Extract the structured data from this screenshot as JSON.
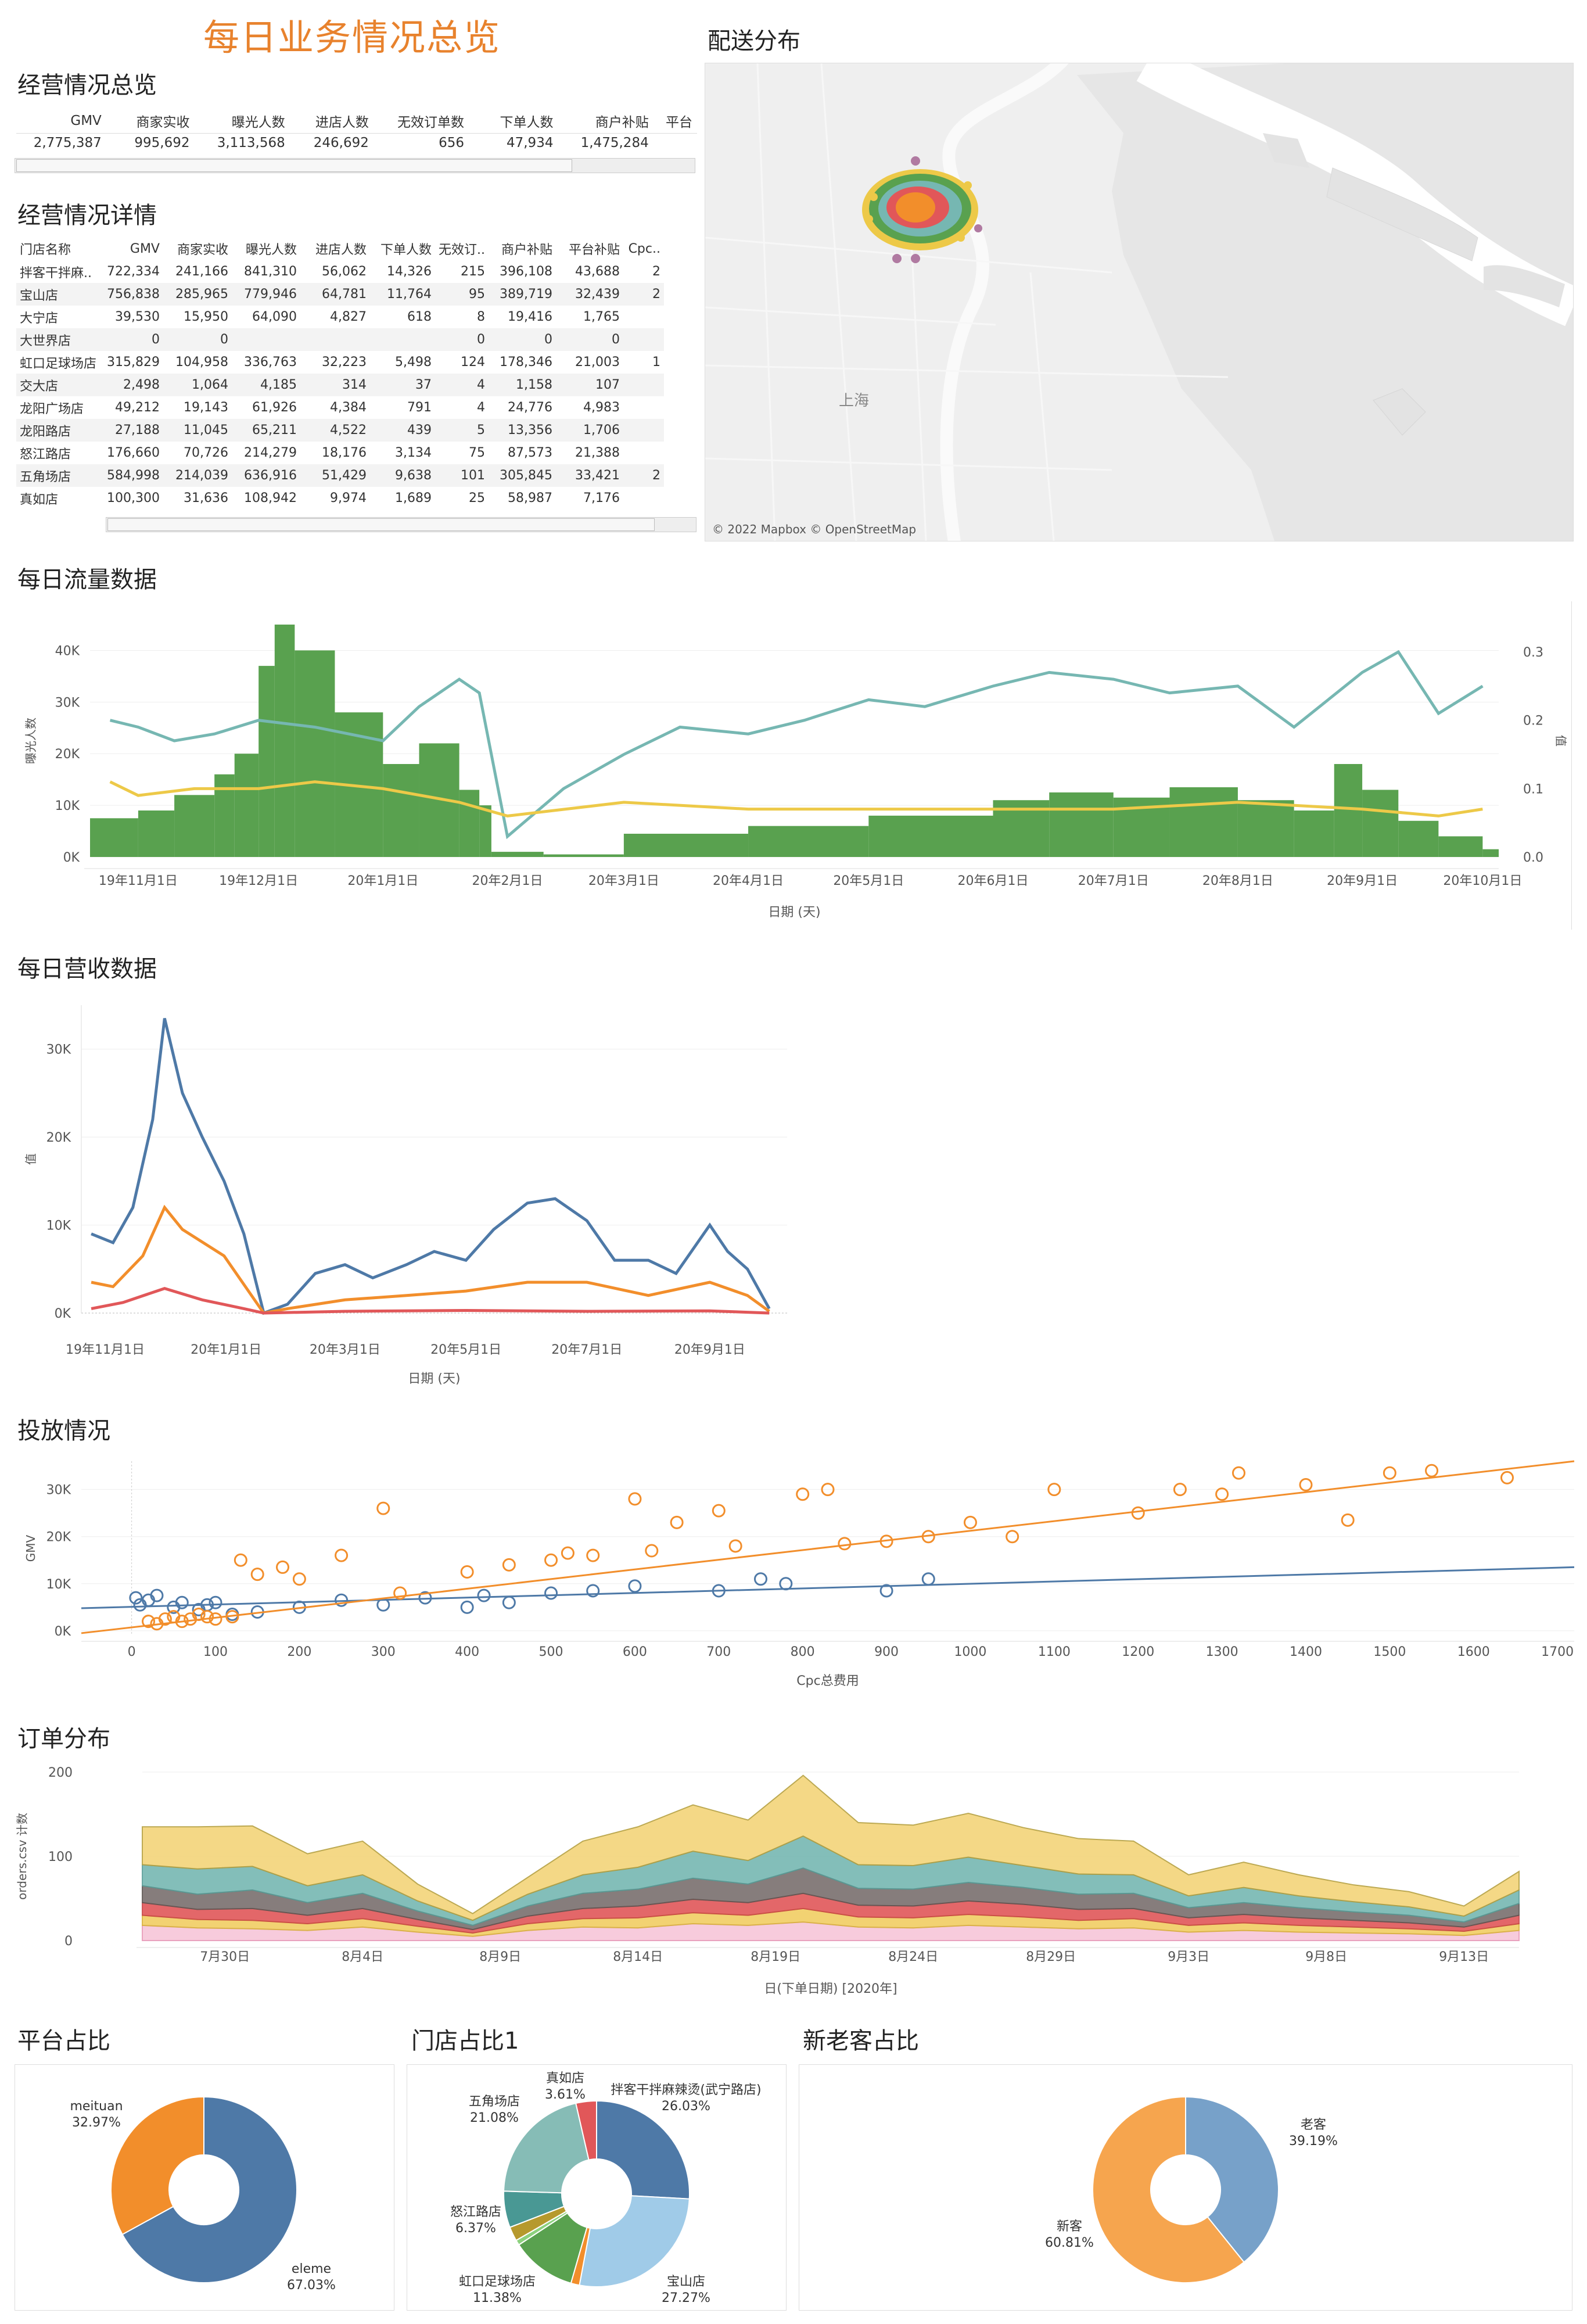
{
  "main_title": "每日业务情况总览",
  "overview": {
    "title": "经营情况总览",
    "headers": [
      "GMV",
      "商家实收",
      "曝光人数",
      "进店人数",
      "无效订单数",
      "下单人数",
      "商户补贴",
      "平台"
    ],
    "values": [
      "2,775,387",
      "995,692",
      "3,113,568",
      "246,692",
      "656",
      "47,934",
      "1,475,284",
      ""
    ]
  },
  "detail": {
    "title": "经营情况详情",
    "headers": [
      "门店名称",
      "GMV",
      "商家实收",
      "曝光人数",
      "进店人数",
      "下单人数",
      "无效订..",
      "商户补贴",
      "平台补贴",
      "Cpc.."
    ],
    "rows": [
      [
        "拌客干拌麻..",
        "722,334",
        "241,166",
        "841,310",
        "56,062",
        "14,326",
        "215",
        "396,108",
        "43,688",
        "2"
      ],
      [
        "宝山店",
        "756,838",
        "285,965",
        "779,946",
        "64,781",
        "11,764",
        "95",
        "389,719",
        "32,439",
        "2"
      ],
      [
        "大宁店",
        "39,530",
        "15,950",
        "64,090",
        "4,827",
        "618",
        "8",
        "19,416",
        "1,765",
        ""
      ],
      [
        "大世界店",
        "0",
        "0",
        "",
        "",
        "",
        "0",
        "0",
        "0",
        ""
      ],
      [
        "虹口足球场店",
        "315,829",
        "104,958",
        "336,763",
        "32,223",
        "5,498",
        "124",
        "178,346",
        "21,003",
        "1"
      ],
      [
        "交大店",
        "2,498",
        "1,064",
        "4,185",
        "314",
        "37",
        "4",
        "1,158",
        "107",
        ""
      ],
      [
        "龙阳广场店",
        "49,212",
        "19,143",
        "61,926",
        "4,384",
        "791",
        "4",
        "24,776",
        "4,983",
        ""
      ],
      [
        "龙阳路店",
        "27,188",
        "11,045",
        "65,211",
        "4,522",
        "439",
        "5",
        "13,356",
        "1,706",
        ""
      ],
      [
        "怒江路店",
        "176,660",
        "70,726",
        "214,279",
        "18,176",
        "3,134",
        "75",
        "87,573",
        "21,388",
        ""
      ],
      [
        "五角场店",
        "584,998",
        "214,039",
        "636,916",
        "51,429",
        "9,638",
        "101",
        "305,845",
        "33,421",
        "2"
      ],
      [
        "真如店",
        "100,300",
        "31,636",
        "108,942",
        "9,974",
        "1,689",
        "25",
        "58,987",
        "7,176",
        ""
      ]
    ]
  },
  "map": {
    "title": "配送分布",
    "city_label": "上海",
    "attribution": "© 2022 Mapbox © OpenStreetMap"
  },
  "traffic": {
    "title": "每日流量数据",
    "ylabel_left": "曝光人数",
    "ylabel_right": "值",
    "xlabel": "日期 (天)",
    "left_ticks": [
      "0K",
      "10K",
      "20K",
      "30K",
      "40K"
    ],
    "right_ticks": [
      "0.0",
      "0.1",
      "0.2",
      "0.3"
    ],
    "x_ticks": [
      "19年11月1日",
      "19年12月1日",
      "20年1月1日",
      "20年2月1日",
      "20年3月1日",
      "20年4月1日",
      "20年5月1日",
      "20年6月1日",
      "20年7月1日",
      "20年8月1日",
      "20年9月1日",
      "20年10月1日"
    ]
  },
  "revenue": {
    "title": "每日营收数据",
    "ylabel": "值",
    "xlabel": "日期 (天)",
    "y_ticks": [
      "0K",
      "10K",
      "20K",
      "30K"
    ],
    "x_ticks": [
      "19年11月1日",
      "20年1月1日",
      "20年3月1日",
      "20年5月1日",
      "20年7月1日",
      "20年9月1日"
    ]
  },
  "ads": {
    "title": "投放情况",
    "ylabel": "GMV",
    "xlabel": "Cpc总费用",
    "y_ticks": [
      "0K",
      "10K",
      "20K",
      "30K"
    ],
    "x_ticks": [
      "0",
      "100",
      "200",
      "300",
      "400",
      "500",
      "600",
      "700",
      "800",
      "900",
      "1000",
      "1100",
      "1200",
      "1300",
      "1400",
      "1500",
      "1600",
      "1700"
    ]
  },
  "orders": {
    "title": "订单分布",
    "ylabel": "orders.csv 计数",
    "xlabel": "日(下单日期) [2020年]",
    "y_ticks": [
      "0",
      "100",
      "200"
    ],
    "x_ticks": [
      "7月30日",
      "8月4日",
      "8月9日",
      "8月14日",
      "8月19日",
      "8月24日",
      "8月29日",
      "9月3日",
      "9月8日",
      "9月13日"
    ]
  },
  "pie_platform": {
    "title": "平台占比"
  },
  "pie_store": {
    "title": "门店占比1"
  },
  "pie_customer": {
    "title": "新老客占比"
  },
  "colors": {
    "accent": "#e8822d",
    "green": "#59a14f",
    "teal": "#76b7b2",
    "yellow": "#edc948",
    "blue": "#4e79a7",
    "orange": "#f28e2b",
    "red": "#e15759"
  },
  "chart_data": [
    {
      "id": "traffic",
      "type": "bar+line",
      "title": "每日流量数据",
      "xlabel": "日期 (天)",
      "ylabel": "曝光人数",
      "ylim": [
        0,
        45000
      ],
      "y2lim": [
        0,
        0.34
      ],
      "x_range": [
        "2019-10-20",
        "2020-10-05"
      ],
      "series": [
        {
          "name": "曝光人数",
          "kind": "bar",
          "axis": "left",
          "x": [
            "2019-10-20",
            "2019-11-01",
            "2019-11-10",
            "2019-11-20",
            "2019-11-25",
            "2019-12-01",
            "2019-12-05",
            "2019-12-10",
            "2019-12-20",
            "2020-01-01",
            "2020-01-10",
            "2020-01-20",
            "2020-01-25",
            "2020-01-28",
            "2020-02-10",
            "2020-03-01",
            "2020-04-01",
            "2020-05-01",
            "2020-06-01",
            "2020-06-15",
            "2020-07-01",
            "2020-07-15",
            "2020-08-01",
            "2020-08-15",
            "2020-08-25",
            "2020-09-01",
            "2020-09-10",
            "2020-09-20",
            "2020-10-01",
            "2020-10-05"
          ],
          "y": [
            7500,
            9000,
            12000,
            16000,
            20000,
            37000,
            45000,
            40000,
            28000,
            18000,
            22000,
            13000,
            10000,
            1000,
            500,
            4500,
            6000,
            8000,
            11000,
            12500,
            11500,
            13500,
            11000,
            9000,
            18000,
            13000,
            7000,
            4000,
            1500,
            800
          ]
        },
        {
          "name": "",
          "kind": "line",
          "axis": "right",
          "x": [
            "2019-10-25",
            "2019-11-01",
            "2019-11-10",
            "2019-11-20",
            "2019-12-01",
            "2019-12-15",
            "2020-01-01",
            "2020-01-10",
            "2020-01-20",
            "2020-01-25",
            "2020-02-01",
            "2020-02-15",
            "2020-03-01",
            "2020-03-15",
            "2020-04-01",
            "2020-04-15",
            "2020-05-01",
            "2020-05-15",
            "2020-06-01",
            "2020-06-15",
            "2020-07-01",
            "2020-07-15",
            "2020-08-01",
            "2020-08-15",
            "2020-09-01",
            "2020-09-10",
            "2020-09-20",
            "2020-10-01"
          ],
          "y": [
            0.2,
            0.19,
            0.17,
            0.18,
            0.2,
            0.19,
            0.17,
            0.22,
            0.26,
            0.24,
            0.03,
            0.1,
            0.15,
            0.19,
            0.18,
            0.2,
            0.23,
            0.22,
            0.25,
            0.27,
            0.26,
            0.24,
            0.25,
            0.19,
            0.27,
            0.3,
            0.21,
            0.25
          ]
        },
        {
          "name": "",
          "kind": "line",
          "axis": "right",
          "x": [
            "2019-10-25",
            "2019-11-01",
            "2019-11-15",
            "2019-12-01",
            "2019-12-15",
            "2020-01-01",
            "2020-01-20",
            "2020-02-01",
            "2020-03-01",
            "2020-04-01",
            "2020-05-01",
            "2020-06-01",
            "2020-07-01",
            "2020-08-01",
            "2020-09-01",
            "2020-09-20",
            "2020-10-01"
          ],
          "y": [
            0.11,
            0.09,
            0.1,
            0.1,
            0.11,
            0.1,
            0.08,
            0.06,
            0.08,
            0.07,
            0.07,
            0.07,
            0.07,
            0.08,
            0.07,
            0.06,
            0.07
          ]
        }
      ]
    },
    {
      "id": "revenue",
      "type": "line",
      "title": "每日营收数据",
      "xlabel": "日期 (天)",
      "ylabel": "值",
      "ylim": [
        0,
        35000
      ],
      "x_range": [
        "2019-10-20",
        "2020-10-10"
      ],
      "series": [
        {
          "name": "",
          "x": [
            "2019-10-25",
            "2019-11-05",
            "2019-11-15",
            "2019-11-25",
            "2019-12-01",
            "2019-12-10",
            "2019-12-20",
            "2019-12-31",
            "2020-01-10",
            "2020-01-20",
            "2020-02-01",
            "2020-02-15",
            "2020-03-01",
            "2020-03-15",
            "2020-04-01",
            "2020-04-15",
            "2020-05-01",
            "2020-05-15",
            "2020-06-01",
            "2020-06-15",
            "2020-07-01",
            "2020-07-15",
            "2020-08-01",
            "2020-08-15",
            "2020-09-01",
            "2020-09-10",
            "2020-09-20",
            "2020-10-01"
          ],
          "y": [
            9000,
            8000,
            12000,
            22000,
            33500,
            25000,
            20000,
            15000,
            9000,
            0,
            1000,
            4500,
            5500,
            4000,
            5500,
            7000,
            6000,
            9500,
            12500,
            13000,
            10500,
            6000,
            6000,
            4500,
            10000,
            7000,
            5000,
            500
          ]
        },
        {
          "name": "",
          "x": [
            "2019-10-25",
            "2019-11-05",
            "2019-11-20",
            "2019-12-01",
            "2019-12-10",
            "2019-12-31",
            "2020-01-20",
            "2020-02-01",
            "2020-03-01",
            "2020-04-01",
            "2020-05-01",
            "2020-06-01",
            "2020-07-01",
            "2020-08-01",
            "2020-09-01",
            "2020-09-20",
            "2020-10-01"
          ],
          "y": [
            3500,
            3000,
            6500,
            12000,
            9500,
            6500,
            0,
            500,
            1500,
            2000,
            2500,
            3500,
            3500,
            2000,
            3500,
            2000,
            200
          ]
        },
        {
          "name": "",
          "x": [
            "2019-10-25",
            "2019-11-10",
            "2019-12-01",
            "2019-12-20",
            "2020-01-10",
            "2020-01-20",
            "2020-03-01",
            "2020-05-01",
            "2020-07-01",
            "2020-09-01",
            "2020-10-01"
          ],
          "y": [
            500,
            1200,
            2800,
            1500,
            500,
            0,
            200,
            300,
            200,
            250,
            0
          ]
        }
      ]
    },
    {
      "id": "ads",
      "type": "scatter",
      "title": "投放情况",
      "xlabel": "Cpc总费用",
      "ylabel": "GMV",
      "xlim": [
        -60,
        1720
      ],
      "ylim": [
        -1000,
        36000
      ],
      "series": [
        {
          "name": "",
          "x": [
            5,
            10,
            20,
            30,
            50,
            60,
            80,
            90,
            100,
            120,
            150,
            200,
            250,
            300,
            350,
            400,
            420,
            450,
            500,
            550,
            600,
            700,
            750,
            780,
            900,
            950
          ],
          "y": [
            7000,
            5500,
            6500,
            7500,
            5000,
            6000,
            4500,
            5500,
            6000,
            3500,
            4000,
            5000,
            6500,
            5500,
            7000,
            5000,
            7500,
            6000,
            8000,
            8500,
            9500,
            8500,
            11000,
            10000,
            8500,
            11000
          ],
          "trend": [
            [
              -60,
              4800
            ],
            [
              1720,
              13500
            ]
          ]
        },
        {
          "name": "",
          "x": [
            20,
            30,
            40,
            50,
            60,
            70,
            80,
            90,
            100,
            120,
            130,
            150,
            180,
            200,
            250,
            300,
            320,
            400,
            450,
            500,
            520,
            550,
            600,
            620,
            650,
            700,
            720,
            800,
            830,
            850,
            900,
            950,
            1000,
            1050,
            1100,
            1200,
            1250,
            1300,
            1320,
            1400,
            1450,
            1500,
            1550,
            1640
          ],
          "y": [
            2000,
            1500,
            2500,
            3000,
            2000,
            2500,
            3500,
            3000,
            2500,
            3000,
            15000,
            12000,
            13500,
            11000,
            16000,
            26000,
            8000,
            12500,
            14000,
            15000,
            16500,
            16000,
            28000,
            17000,
            23000,
            25500,
            18000,
            29000,
            30000,
            18500,
            19000,
            20000,
            23000,
            20000,
            30000,
            25000,
            30000,
            29000,
            33500,
            31000,
            23500,
            33500,
            34000,
            32500
          ],
          "trend": [
            [
              -60,
              -500
            ],
            [
              1720,
              36000
            ]
          ]
        }
      ]
    },
    {
      "id": "orders",
      "type": "area",
      "title": "订单分布",
      "xlabel": "日(下单日期) [2020年]",
      "ylabel": "orders.csv 计数",
      "ylim": [
        0,
        200
      ],
      "x": [
        "07-27",
        "07-29",
        "07-31",
        "08-02",
        "08-04",
        "08-06",
        "08-08",
        "08-10",
        "08-12",
        "08-14",
        "08-16",
        "08-18",
        "08-20",
        "08-22",
        "08-24",
        "08-26",
        "08-28",
        "08-30",
        "09-01",
        "09-03",
        "09-05",
        "09-07",
        "09-09",
        "09-11",
        "09-13",
        "09-15"
      ],
      "series": [
        {
          "name": "",
          "values": [
            18,
            15,
            14,
            12,
            16,
            10,
            5,
            12,
            16,
            15,
            20,
            18,
            22,
            16,
            15,
            18,
            16,
            14,
            15,
            10,
            12,
            10,
            9,
            8,
            6,
            12
          ]
        },
        {
          "name": "",
          "values": [
            12,
            10,
            10,
            8,
            10,
            7,
            4,
            8,
            10,
            12,
            13,
            12,
            16,
            12,
            12,
            13,
            12,
            10,
            11,
            8,
            9,
            8,
            7,
            6,
            5,
            8
          ]
        },
        {
          "name": "",
          "values": [
            15,
            12,
            14,
            10,
            12,
            8,
            4,
            9,
            12,
            14,
            16,
            15,
            18,
            14,
            14,
            16,
            15,
            13,
            12,
            9,
            10,
            9,
            8,
            7,
            5,
            10
          ]
        },
        {
          "name": "",
          "values": [
            20,
            18,
            22,
            15,
            18,
            10,
            5,
            12,
            18,
            20,
            25,
            22,
            30,
            20,
            20,
            22,
            20,
            18,
            18,
            12,
            14,
            12,
            10,
            9,
            6,
            14
          ]
        },
        {
          "name": "",
          "values": [
            25,
            30,
            28,
            20,
            22,
            12,
            6,
            14,
            22,
            26,
            32,
            28,
            38,
            28,
            28,
            30,
            26,
            24,
            22,
            14,
            18,
            14,
            12,
            10,
            7,
            16
          ]
        },
        {
          "name": "",
          "values": [
            45,
            50,
            48,
            38,
            40,
            20,
            8,
            20,
            40,
            48,
            55,
            48,
            72,
            50,
            48,
            52,
            45,
            42,
            40,
            25,
            30,
            25,
            20,
            18,
            12,
            22
          ]
        }
      ]
    },
    {
      "id": "pie_platform",
      "type": "pie",
      "title": "平台占比",
      "categories": [
        "eleme",
        "meituan"
      ],
      "values": [
        67.03,
        32.97
      ],
      "labels": [
        "67.03%",
        "32.97%"
      ]
    },
    {
      "id": "pie_store",
      "type": "pie",
      "title": "门店占比1",
      "categories": [
        "拌客干拌麻辣烫(武宁路店)",
        "宝山店",
        "",
        "虹口足球场店",
        "",
        "",
        "怒江路店",
        "五角场店",
        "真如店"
      ],
      "values": [
        26.03,
        27.27,
        1.5,
        11.38,
        0.9,
        2.5,
        6.37,
        21.08,
        3.61
      ],
      "labels": [
        "26.03%",
        "27.27%",
        "",
        "11.38%",
        "",
        "",
        "6.37%",
        "21.08%",
        "3.61%"
      ]
    },
    {
      "id": "pie_customer",
      "type": "pie",
      "title": "新老客占比",
      "categories": [
        "老客",
        "新客"
      ],
      "values": [
        39.19,
        60.81
      ],
      "labels": [
        "39.19%",
        "60.81%"
      ]
    }
  ]
}
